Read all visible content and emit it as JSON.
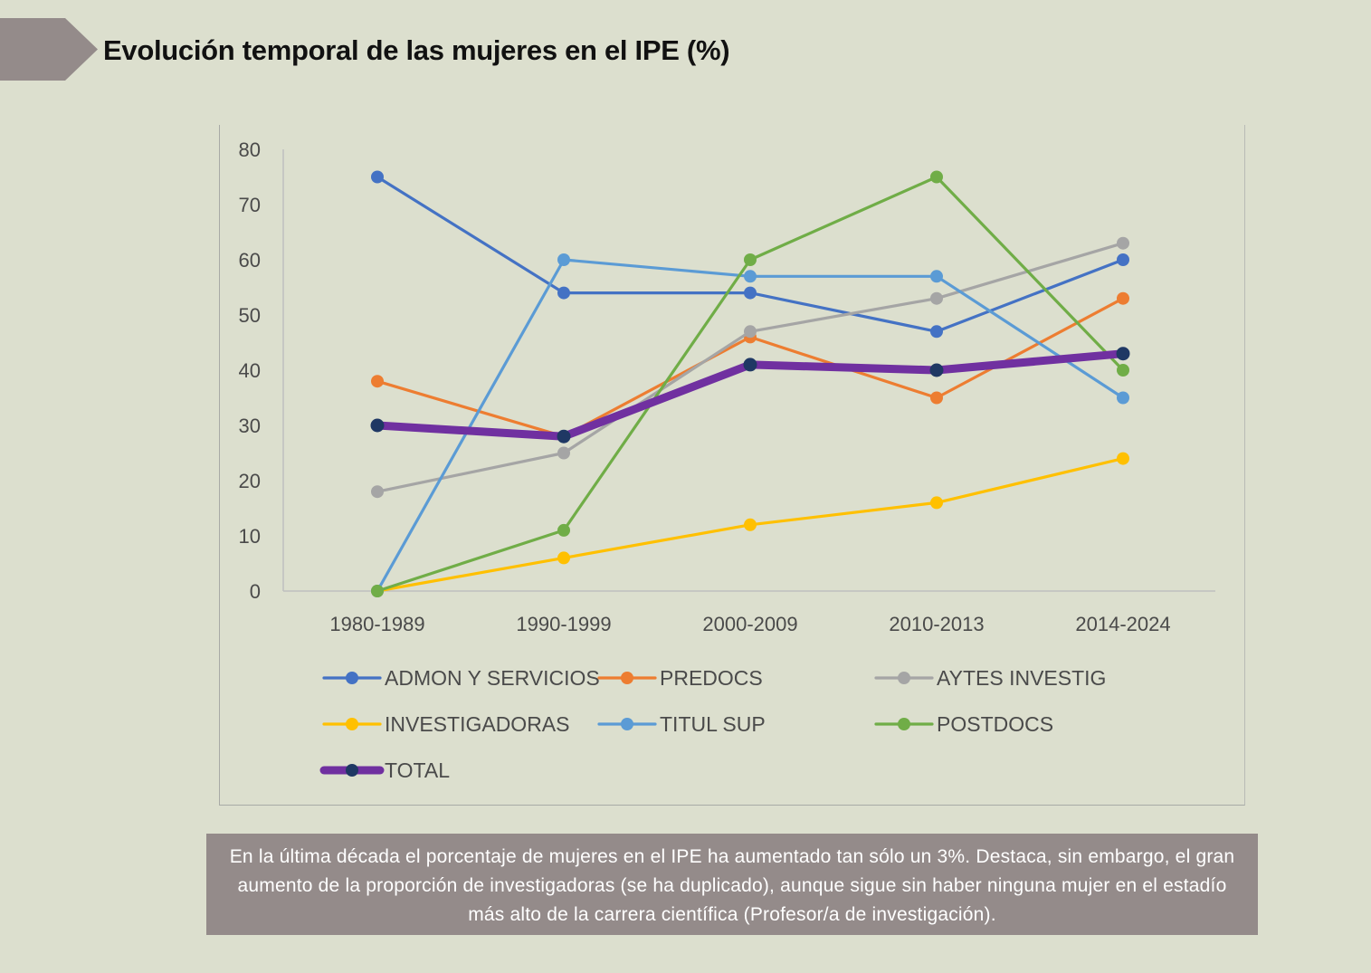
{
  "header": {
    "title": "Evolución temporal de las mujeres en el IPE (%)",
    "arrow_color": "#948b8a"
  },
  "chart_data": {
    "type": "line",
    "title": "Evolución temporal de las mujeres en el IPE (%)",
    "xlabel": "",
    "ylabel": "",
    "ylim": [
      0,
      80
    ],
    "yticks": [
      0,
      10,
      20,
      30,
      40,
      50,
      60,
      70,
      80
    ],
    "grid": false,
    "legend_position": "bottom",
    "categories": [
      "1980-1989",
      "1990-1999",
      "2000-2009",
      "2010-2013",
      "2014-2024"
    ],
    "series": [
      {
        "name": "ADMON Y SERVICIOS",
        "color": "#4472c4",
        "values": [
          75,
          54,
          54,
          47,
          60
        ]
      },
      {
        "name": "PREDOCS",
        "color": "#ed7d31",
        "values": [
          38,
          28,
          46,
          35,
          53
        ]
      },
      {
        "name": "AYTES INVESTIG",
        "color": "#a5a5a5",
        "values": [
          18,
          25,
          47,
          53,
          63
        ]
      },
      {
        "name": "INVESTIGADORAS",
        "color": "#ffc000",
        "values": [
          0,
          6,
          12,
          16,
          24
        ]
      },
      {
        "name": "TITUL SUP",
        "color": "#5b9bd5",
        "values": [
          0,
          60,
          57,
          57,
          35
        ]
      },
      {
        "name": "POSTDOCS",
        "color": "#70ad47",
        "values": [
          0,
          11,
          60,
          75,
          40
        ]
      },
      {
        "name": "TOTAL",
        "color": "#7030a0",
        "marker_color": "#1f3864",
        "values": [
          30,
          28,
          41,
          40,
          43
        ]
      }
    ]
  },
  "caption": {
    "text": "En la última década el porcentaje de mujeres en el IPE ha aumentado tan sólo un 3%. Destaca, sin embargo, el gran aumento de la proporción de investigadoras (se ha duplicado), aunque sigue sin haber ninguna mujer en el estadío más alto de la carrera científica (Profesor/a de investigación)."
  }
}
